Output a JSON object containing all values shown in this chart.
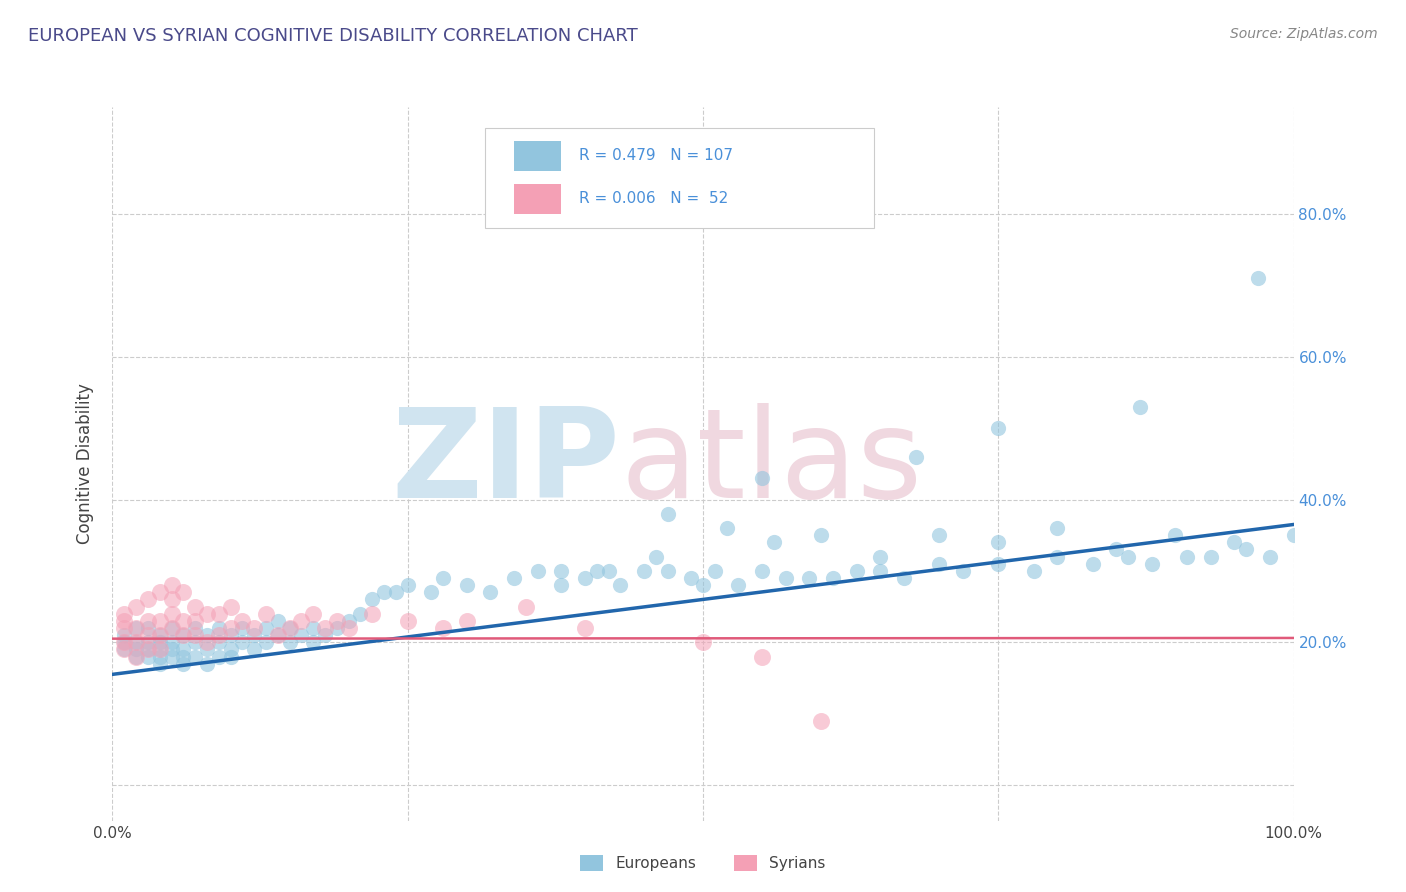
{
  "title": "EUROPEAN VS SYRIAN COGNITIVE DISABILITY CORRELATION CHART",
  "source": "Source: ZipAtlas.com",
  "ylabel": "Cognitive Disability",
  "xlim": [
    0.0,
    1.0
  ],
  "ylim": [
    -0.05,
    0.95
  ],
  "yticks": [
    0.0,
    0.2,
    0.4,
    0.6,
    0.8
  ],
  "ytick_labels_right": [
    "",
    "20.0%",
    "40.0%",
    "60.0%",
    "80.0%"
  ],
  "xticks": [
    0.0,
    0.25,
    0.5,
    0.75,
    1.0
  ],
  "xtick_labels": [
    "0.0%",
    "",
    "",
    "",
    "100.0%"
  ],
  "european_color": "#92c5de",
  "syrian_color": "#f4a0b5",
  "european_line_color": "#2166ac",
  "syrian_line_color": "#e05a7a",
  "background_color": "#ffffff",
  "grid_color": "#cccccc",
  "title_color": "#4a4a8a",
  "right_axis_color": "#4a90d9",
  "watermark_zip_color": "#d0e4f0",
  "watermark_atlas_color": "#f0d8e0",
  "european_scatter_x": [
    0.01,
    0.01,
    0.01,
    0.02,
    0.02,
    0.02,
    0.02,
    0.03,
    0.03,
    0.03,
    0.03,
    0.04,
    0.04,
    0.04,
    0.04,
    0.04,
    0.05,
    0.05,
    0.05,
    0.05,
    0.06,
    0.06,
    0.06,
    0.06,
    0.07,
    0.07,
    0.07,
    0.08,
    0.08,
    0.08,
    0.09,
    0.09,
    0.09,
    0.1,
    0.1,
    0.1,
    0.11,
    0.11,
    0.12,
    0.12,
    0.13,
    0.13,
    0.14,
    0.14,
    0.15,
    0.15,
    0.16,
    0.17,
    0.17,
    0.18,
    0.19,
    0.2,
    0.21,
    0.22,
    0.23,
    0.24,
    0.25,
    0.27,
    0.28,
    0.3,
    0.32,
    0.34,
    0.36,
    0.38,
    0.4,
    0.41,
    0.43,
    0.45,
    0.47,
    0.49,
    0.51,
    0.53,
    0.55,
    0.57,
    0.59,
    0.61,
    0.63,
    0.65,
    0.67,
    0.7,
    0.72,
    0.75,
    0.78,
    0.8,
    0.83,
    0.86,
    0.88,
    0.91,
    0.93,
    0.96,
    0.98,
    1.0,
    0.47,
    0.52,
    0.56,
    0.6,
    0.65,
    0.7,
    0.75,
    0.8,
    0.85,
    0.9,
    0.95,
    0.38,
    0.42,
    0.46,
    0.5
  ],
  "european_scatter_y": [
    0.2,
    0.19,
    0.21,
    0.18,
    0.2,
    0.22,
    0.19,
    0.18,
    0.2,
    0.22,
    0.19,
    0.17,
    0.19,
    0.21,
    0.18,
    0.2,
    0.18,
    0.2,
    0.22,
    0.19,
    0.17,
    0.19,
    0.21,
    0.18,
    0.18,
    0.2,
    0.22,
    0.17,
    0.19,
    0.21,
    0.18,
    0.2,
    0.22,
    0.19,
    0.21,
    0.18,
    0.2,
    0.22,
    0.19,
    0.21,
    0.2,
    0.22,
    0.21,
    0.23,
    0.22,
    0.2,
    0.21,
    0.22,
    0.2,
    0.21,
    0.22,
    0.23,
    0.24,
    0.26,
    0.27,
    0.27,
    0.28,
    0.27,
    0.29,
    0.28,
    0.27,
    0.29,
    0.3,
    0.3,
    0.29,
    0.3,
    0.28,
    0.3,
    0.3,
    0.29,
    0.3,
    0.28,
    0.3,
    0.29,
    0.29,
    0.29,
    0.3,
    0.3,
    0.29,
    0.31,
    0.3,
    0.31,
    0.3,
    0.32,
    0.31,
    0.32,
    0.31,
    0.32,
    0.32,
    0.33,
    0.32,
    0.35,
    0.38,
    0.36,
    0.34,
    0.35,
    0.32,
    0.35,
    0.34,
    0.36,
    0.33,
    0.35,
    0.34,
    0.28,
    0.3,
    0.32,
    0.28
  ],
  "syrian_scatter_x": [
    0.01,
    0.01,
    0.01,
    0.01,
    0.01,
    0.02,
    0.02,
    0.02,
    0.02,
    0.03,
    0.03,
    0.03,
    0.03,
    0.04,
    0.04,
    0.04,
    0.04,
    0.05,
    0.05,
    0.05,
    0.05,
    0.06,
    0.06,
    0.06,
    0.07,
    0.07,
    0.07,
    0.08,
    0.08,
    0.09,
    0.09,
    0.1,
    0.1,
    0.11,
    0.12,
    0.13,
    0.14,
    0.15,
    0.16,
    0.17,
    0.18,
    0.19,
    0.2,
    0.22,
    0.25,
    0.28,
    0.3,
    0.35,
    0.4,
    0.5,
    0.55,
    0.6
  ],
  "syrian_scatter_y": [
    0.2,
    0.22,
    0.24,
    0.19,
    0.23,
    0.18,
    0.2,
    0.22,
    0.25,
    0.19,
    0.21,
    0.23,
    0.26,
    0.19,
    0.21,
    0.23,
    0.27,
    0.22,
    0.24,
    0.26,
    0.28,
    0.21,
    0.23,
    0.27,
    0.21,
    0.23,
    0.25,
    0.2,
    0.24,
    0.21,
    0.24,
    0.22,
    0.25,
    0.23,
    0.22,
    0.24,
    0.21,
    0.22,
    0.23,
    0.24,
    0.22,
    0.23,
    0.22,
    0.24,
    0.23,
    0.22,
    0.23,
    0.25,
    0.22,
    0.2,
    0.18,
    0.09
  ],
  "european_line_x": [
    0.0,
    1.0
  ],
  "european_line_y": [
    0.155,
    0.365
  ],
  "syrian_line_x": [
    0.0,
    1.0
  ],
  "syrian_line_y": [
    0.205,
    0.206
  ],
  "high_eu_points_x": [
    0.97,
    0.87,
    0.75,
    0.68,
    0.55
  ],
  "high_eu_points_y": [
    0.71,
    0.53,
    0.5,
    0.46,
    0.43
  ]
}
